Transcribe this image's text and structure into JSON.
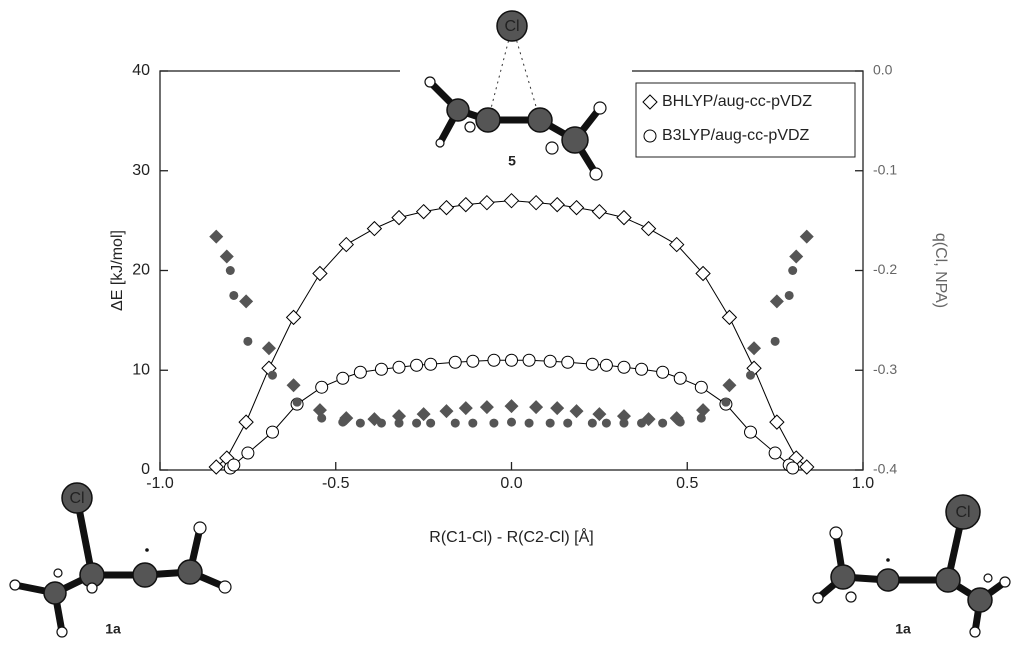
{
  "chart_data": {
    "type": "scatter",
    "x_label": "R(C1-Cl) - R(C2-Cl) [Å]",
    "y_label": "ΔE [kJ/mol]",
    "y2_label": "q(Cl, NPA)",
    "xlim": [
      -1,
      1
    ],
    "xticks": [
      {
        "value": -1,
        "label": "-1.0"
      },
      -0.5,
      {
        "value": 0,
        "label": "0.0"
      },
      0.5,
      {
        "value": 1,
        "label": "1.0"
      }
    ],
    "ylim": [
      0,
      40
    ],
    "yticks": [
      0,
      10,
      20,
      30,
      40
    ],
    "y2lim": [
      -0.4,
      0
    ],
    "y2ticks": [
      -0.4,
      -0.3,
      -0.2,
      -0.1,
      {
        "value": 0,
        "label": "0.0"
      }
    ],
    "legend": "upper right",
    "annotations": [
      "5",
      "1a",
      "1a"
    ],
    "atom_labels": [
      "Cl",
      "Cl",
      "Cl"
    ],
    "series": [
      {
        "name": "BHLYP/aug-cc-pVDZ",
        "marker": "diamond",
        "filled": false,
        "line": true,
        "color": "#000000",
        "x": [
          -0.84,
          -0.81,
          -0.755,
          -0.69,
          -0.62,
          -0.545,
          -0.47,
          -0.39,
          -0.32,
          -0.25,
          -0.185,
          -0.13,
          -0.07,
          0,
          0.07,
          0.13,
          0.185,
          0.25,
          0.32,
          0.39,
          0.47,
          0.545,
          0.62,
          0.69,
          0.755,
          0.81,
          0.84
        ],
        "values": [
          0.3,
          1.2,
          4.8,
          10.2,
          15.3,
          19.7,
          22.6,
          24.2,
          25.3,
          25.9,
          26.3,
          26.6,
          26.8,
          27.0,
          26.8,
          26.6,
          26.3,
          25.9,
          25.3,
          24.2,
          22.6,
          19.7,
          15.3,
          10.2,
          4.8,
          1.2,
          0.3
        ]
      },
      {
        "name": "B3LYP/aug-cc-pVDZ",
        "marker": "circle",
        "filled": false,
        "line": true,
        "color": "#000000",
        "x": [
          -0.8,
          -0.79,
          -0.75,
          -0.68,
          -0.61,
          -0.54,
          -0.48,
          -0.43,
          -0.37,
          -0.32,
          -0.27,
          -0.23,
          -0.16,
          -0.11,
          -0.05,
          0,
          0.05,
          0.11,
          0.16,
          0.23,
          0.27,
          0.32,
          0.37,
          0.43,
          0.48,
          0.54,
          0.61,
          0.68,
          0.75,
          0.79,
          0.8
        ],
        "values": [
          0.2,
          0.5,
          1.7,
          3.8,
          6.6,
          8.3,
          9.2,
          9.8,
          10.1,
          10.3,
          10.5,
          10.6,
          10.8,
          10.9,
          11.0,
          11.0,
          11.0,
          10.9,
          10.8,
          10.6,
          10.5,
          10.3,
          10.1,
          9.8,
          9.2,
          8.3,
          6.6,
          3.8,
          1.7,
          0.5,
          0.2
        ]
      },
      {
        "marker": "diamond",
        "filled": true,
        "axis": "y2",
        "color": "#555555",
        "x": [
          -0.84,
          -0.81,
          -0.755,
          -0.69,
          -0.62,
          -0.545,
          -0.47,
          -0.39,
          -0.32,
          -0.25,
          -0.185,
          -0.13,
          -0.07,
          0,
          0.07,
          0.13,
          0.185,
          0.25,
          0.32,
          0.39,
          0.47,
          0.545,
          0.62,
          0.69,
          0.755,
          0.81,
          0.84
        ],
        "values": [
          -0.166,
          -0.186,
          -0.231,
          -0.278,
          -0.315,
          -0.34,
          -0.348,
          -0.349,
          -0.346,
          -0.344,
          -0.341,
          -0.338,
          -0.337,
          -0.336,
          -0.337,
          -0.338,
          -0.341,
          -0.344,
          -0.346,
          -0.349,
          -0.348,
          -0.34,
          -0.315,
          -0.278,
          -0.231,
          -0.186,
          -0.166
        ]
      },
      {
        "marker": "circle",
        "filled": true,
        "axis": "y2",
        "color": "#555555",
        "x": [
          -0.8,
          -0.79,
          -0.75,
          -0.68,
          -0.61,
          -0.54,
          -0.48,
          -0.43,
          -0.37,
          -0.32,
          -0.27,
          -0.23,
          -0.16,
          -0.11,
          -0.05,
          0,
          0.05,
          0.11,
          0.16,
          0.23,
          0.27,
          0.32,
          0.37,
          0.43,
          0.48,
          0.54,
          0.61,
          0.68,
          0.75,
          0.79,
          0.8
        ],
        "values": [
          -0.2,
          -0.225,
          -0.271,
          -0.305,
          -0.332,
          -0.348,
          -0.352,
          -0.353,
          -0.353,
          -0.353,
          -0.353,
          -0.353,
          -0.353,
          -0.353,
          -0.353,
          -0.352,
          -0.353,
          -0.353,
          -0.353,
          -0.353,
          -0.353,
          -0.353,
          -0.353,
          -0.353,
          -0.352,
          -0.348,
          -0.332,
          -0.305,
          -0.271,
          -0.225,
          -0.2
        ]
      }
    ]
  }
}
